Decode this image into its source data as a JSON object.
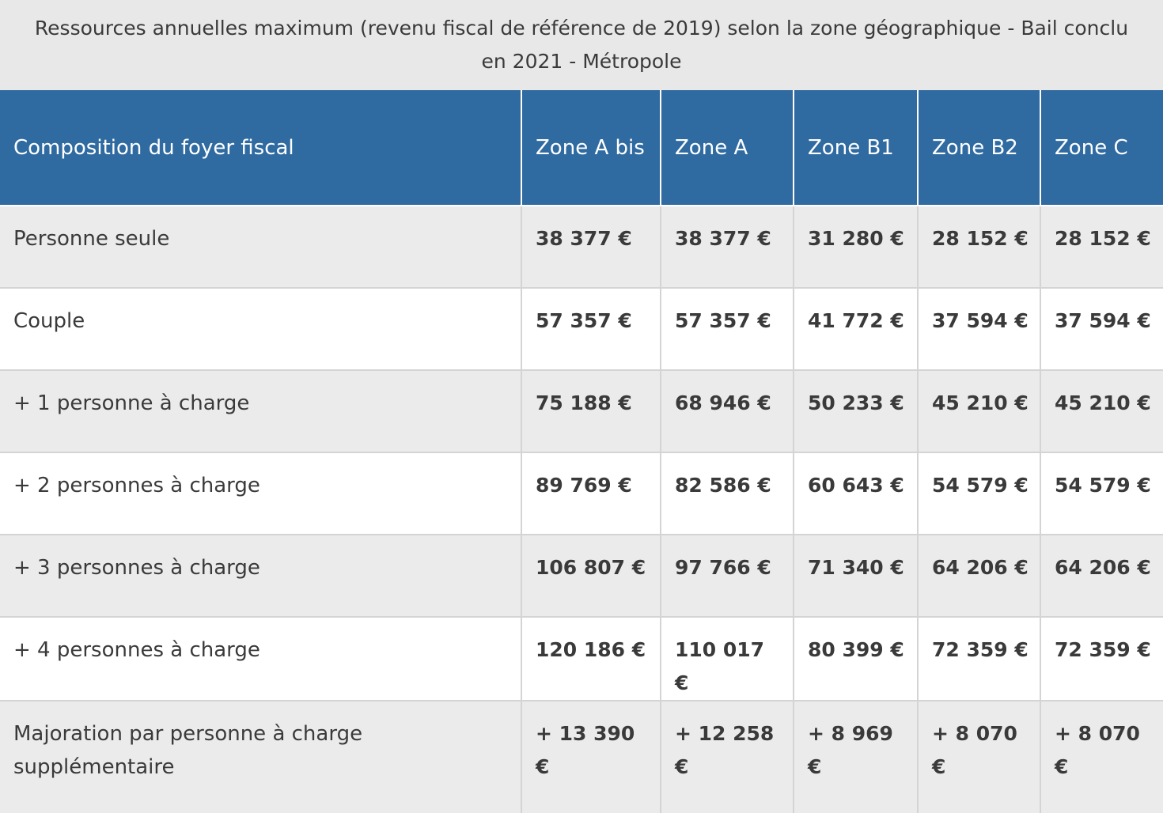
{
  "caption": "Ressources annuelles maximum (revenu fiscal de référence de 2019) selon la zone géographique - Bail conclu en 2021 - Métropole",
  "headers": [
    "Composition du foyer fiscal",
    "Zone A bis",
    "Zone A",
    "Zone B1",
    "Zone B2",
    "Zone C"
  ],
  "rows": [
    {
      "label": "Personne seule",
      "values": [
        "38 377 €",
        "38 377 €",
        "31 280 €",
        "28 152 €",
        "28 152 €"
      ]
    },
    {
      "label": "Couple",
      "values": [
        "57 357 €",
        "57 357 €",
        "41 772 €",
        "37 594 €",
        "37 594 €"
      ]
    },
    {
      "label": "+ 1 personne à charge",
      "values": [
        "75 188 €",
        "68 946 €",
        "50 233 €",
        "45 210 €",
        "45 210 €"
      ]
    },
    {
      "label": "+ 2 personnes à charge",
      "values": [
        "89 769 €",
        "82 586 €",
        "60 643 €",
        "54 579 €",
        "54 579 €"
      ]
    },
    {
      "label": "+ 3 personnes à charge",
      "values": [
        "106 807 €",
        "97 766 €",
        "71 340 €",
        "64 206 €",
        "64 206 €"
      ]
    },
    {
      "label": "+ 4 personnes à charge",
      "values": [
        "120 186 €",
        "110 017 €",
        "80 399 €",
        "72 359 €",
        "72 359 €"
      ]
    },
    {
      "label": "Majoration par personne à charge supplémentaire",
      "values": [
        "+ 13 390 €",
        "+ 12 258 €",
        "+ 8 969 €",
        "+ 8 070 €",
        "+ 8 070 €"
      ]
    }
  ]
}
